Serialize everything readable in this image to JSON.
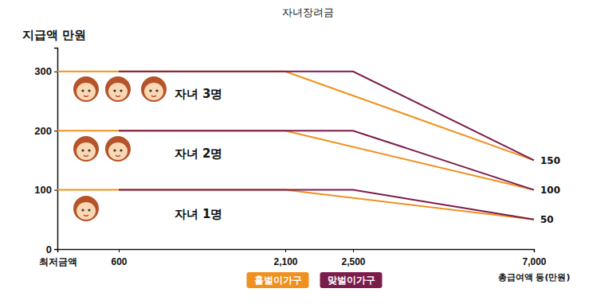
{
  "chart_data": {
    "type": "line",
    "title": "자녀장려금",
    "y_label": "지급액 만원",
    "x_label": "총급여액 등(만원)",
    "xlim": [
      0,
      7000
    ],
    "xticks": [
      {
        "value": 0,
        "label": "최저금액"
      },
      600,
      {
        "value": 2100,
        "label": "2,100"
      },
      {
        "value": 2500,
        "label": "2,500"
      },
      {
        "value": 7000,
        "label": "7,000"
      }
    ],
    "ylim": [
      0,
      340
    ],
    "yticks": [
      0,
      100,
      200,
      300
    ],
    "grid": false,
    "legend": "bottom",
    "series": [
      {
        "name": "홑벌이가구",
        "color": "#f0901e",
        "x": [
          0,
          2100,
          7000
        ],
        "values": [
          300,
          300,
          150
        ]
      },
      {
        "name": "맞벌이가구",
        "color": "#7b1c4b",
        "x": [
          600,
          2500,
          7000
        ],
        "values": [
          300,
          300,
          150
        ]
      },
      {
        "name": "홑벌이가구",
        "color": "#f0901e",
        "x": [
          0,
          2100,
          7000
        ],
        "values": [
          200,
          200,
          100
        ]
      },
      {
        "name": "맞벌이가구",
        "color": "#7b1c4b",
        "x": [
          600,
          2500,
          7000
        ],
        "values": [
          200,
          200,
          100
        ]
      },
      {
        "name": "홑벌이가구",
        "color": "#f0901e",
        "x": [
          0,
          2100,
          7000
        ],
        "values": [
          100,
          100,
          50
        ]
      },
      {
        "name": "맞벌이가구",
        "color": "#7b1c4b",
        "x": [
          600,
          2500,
          7000
        ],
        "values": [
          100,
          100,
          50
        ]
      }
    ],
    "annotations": [
      {
        "text": "자녀 3명",
        "x": 1100,
        "y": 262
      },
      {
        "text": "자녀 2명",
        "x": 1100,
        "y": 162
      },
      {
        "text": "자녀 1명",
        "x": 1100,
        "y": 60
      },
      {
        "text": "150",
        "x": 7000,
        "y": 150
      },
      {
        "text": "100",
        "x": 7000,
        "y": 100
      },
      {
        "text": "50",
        "x": 7000,
        "y": 50
      }
    ]
  }
}
